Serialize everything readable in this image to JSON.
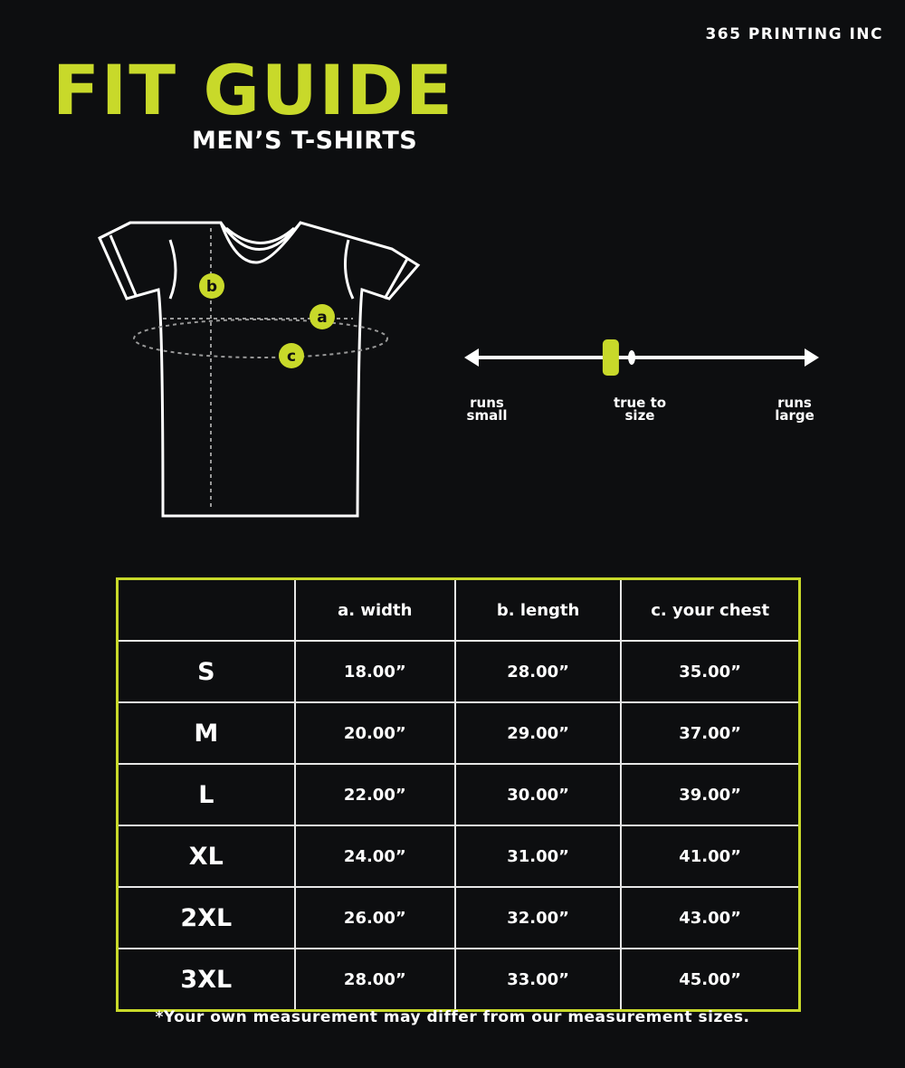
{
  "brand": "365 PRINTING INC",
  "title": "FIT GUIDE",
  "subtitle": "MEN’S T-SHIRTS",
  "accent_color": "#c8d92a",
  "background_color": "#0d0e10",
  "diagram": {
    "markers": [
      "a",
      "b",
      "c"
    ]
  },
  "fit_scale": {
    "left_label": "runs small",
    "center_label": "true to size",
    "right_label": "runs large",
    "indicator_position_fraction": 0.41
  },
  "table": {
    "headers": [
      "",
      "a. width",
      "b. length",
      "c. your chest"
    ],
    "rows": [
      [
        "S",
        "18.00”",
        "28.00”",
        "35.00”"
      ],
      [
        "M",
        "20.00”",
        "29.00”",
        "37.00”"
      ],
      [
        "L",
        "22.00”",
        "30.00”",
        "39.00”"
      ],
      [
        "XL",
        "24.00”",
        "31.00”",
        "41.00”"
      ],
      [
        "2XL",
        "26.00”",
        "32.00”",
        "43.00”"
      ],
      [
        "3XL",
        "28.00”",
        "33.00”",
        "45.00”"
      ]
    ]
  },
  "footnote": "*Your own measurement may differ from our measurement sizes."
}
